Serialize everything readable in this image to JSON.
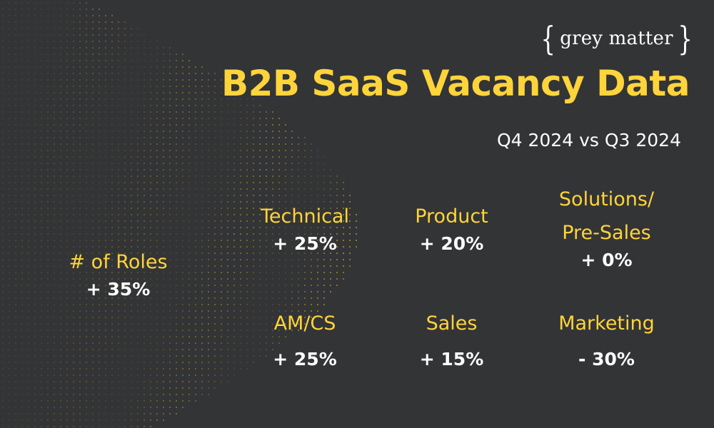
{
  "logo": {
    "brace_open": "{",
    "text": "grey matter",
    "brace_close": "}"
  },
  "title": "B2B SaaS Vacancy Data",
  "subtitle": "Q4 2024 vs Q3 2024",
  "overall": {
    "label": "# of Roles",
    "value": "+ 35%"
  },
  "categories": [
    {
      "label": "Technical",
      "value": "+ 25%"
    },
    {
      "label": "Product",
      "value": "+ 20%"
    },
    {
      "label": "Solutions/\nPre-Sales",
      "value": "+ 0%"
    },
    {
      "label": "AM/CS",
      "value": "+ 25%"
    },
    {
      "label": "Sales",
      "value": "+ 15%"
    },
    {
      "label": "Marketing",
      "value": "- 30%"
    }
  ],
  "colors": {
    "background": "#333436",
    "accent": "#ffd43b",
    "text": "#ffffff",
    "dots": "#c9a92a"
  }
}
